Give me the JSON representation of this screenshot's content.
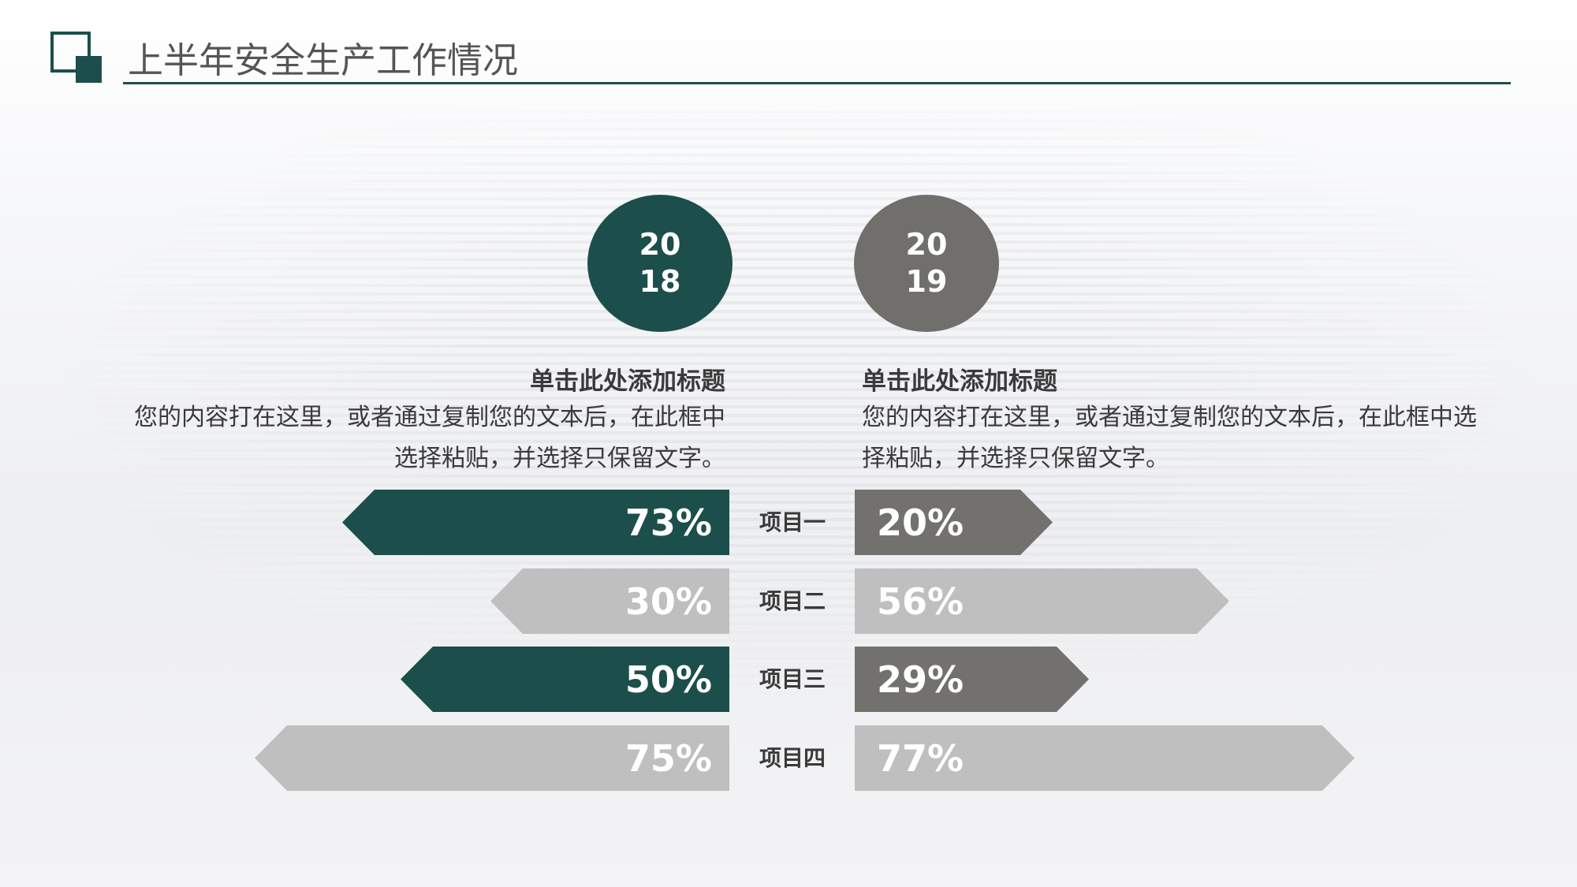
{
  "header": {
    "title": "上半年安全生产工作情况"
  },
  "colors": {
    "accent": "#1c4f4b",
    "secondary": "#706f6b",
    "light": "#bfbfbf"
  },
  "columns": [
    {
      "year": "2018",
      "heading": "单击此处添加标题",
      "text": "您的内容打在这里，或者通过复制您的文本后，在此框中选择粘贴，并选择只保留文字。"
    },
    {
      "year": "2019",
      "heading": "单击此处添加标题",
      "text": "您的内容打在这里，或者通过复制您的文本后，在此框中选择粘贴，并选择只保留文字。"
    }
  ],
  "items": [
    {
      "label": "项目一",
      "left": "73%",
      "right": "20%"
    },
    {
      "label": "项目二",
      "left": "30%",
      "right": "56%"
    },
    {
      "label": "项目三",
      "left": "50%",
      "right": "29%"
    },
    {
      "label": "项目四",
      "left": "75%",
      "right": "77%"
    }
  ]
}
